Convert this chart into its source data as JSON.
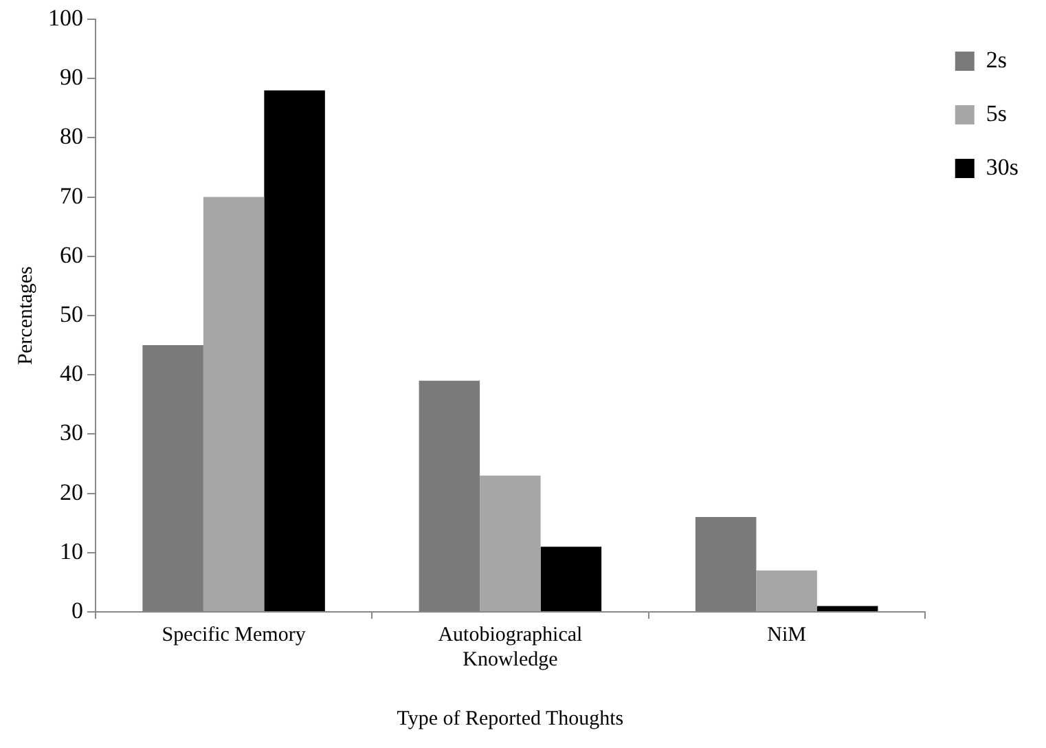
{
  "chart_data": {
    "type": "bar",
    "xlabel": "Type of Reported Thoughts",
    "ylabel": "Percentages",
    "categories": [
      "Specific Memory",
      "Autobiographical Knowledge",
      "NiM"
    ],
    "series": [
      {
        "name": "2s",
        "color": "#7a7a7a",
        "values": [
          45,
          39,
          16
        ]
      },
      {
        "name": "5s",
        "color": "#a6a6a6",
        "values": [
          70,
          23,
          7
        ]
      },
      {
        "name": "30s",
        "color": "#000000",
        "values": [
          88,
          11,
          1
        ]
      }
    ],
    "ylim": [
      0,
      100
    ],
    "yticks": [
      0,
      10,
      20,
      30,
      40,
      50,
      60,
      70,
      80,
      90,
      100
    ],
    "grid": false,
    "legend": "top right"
  }
}
